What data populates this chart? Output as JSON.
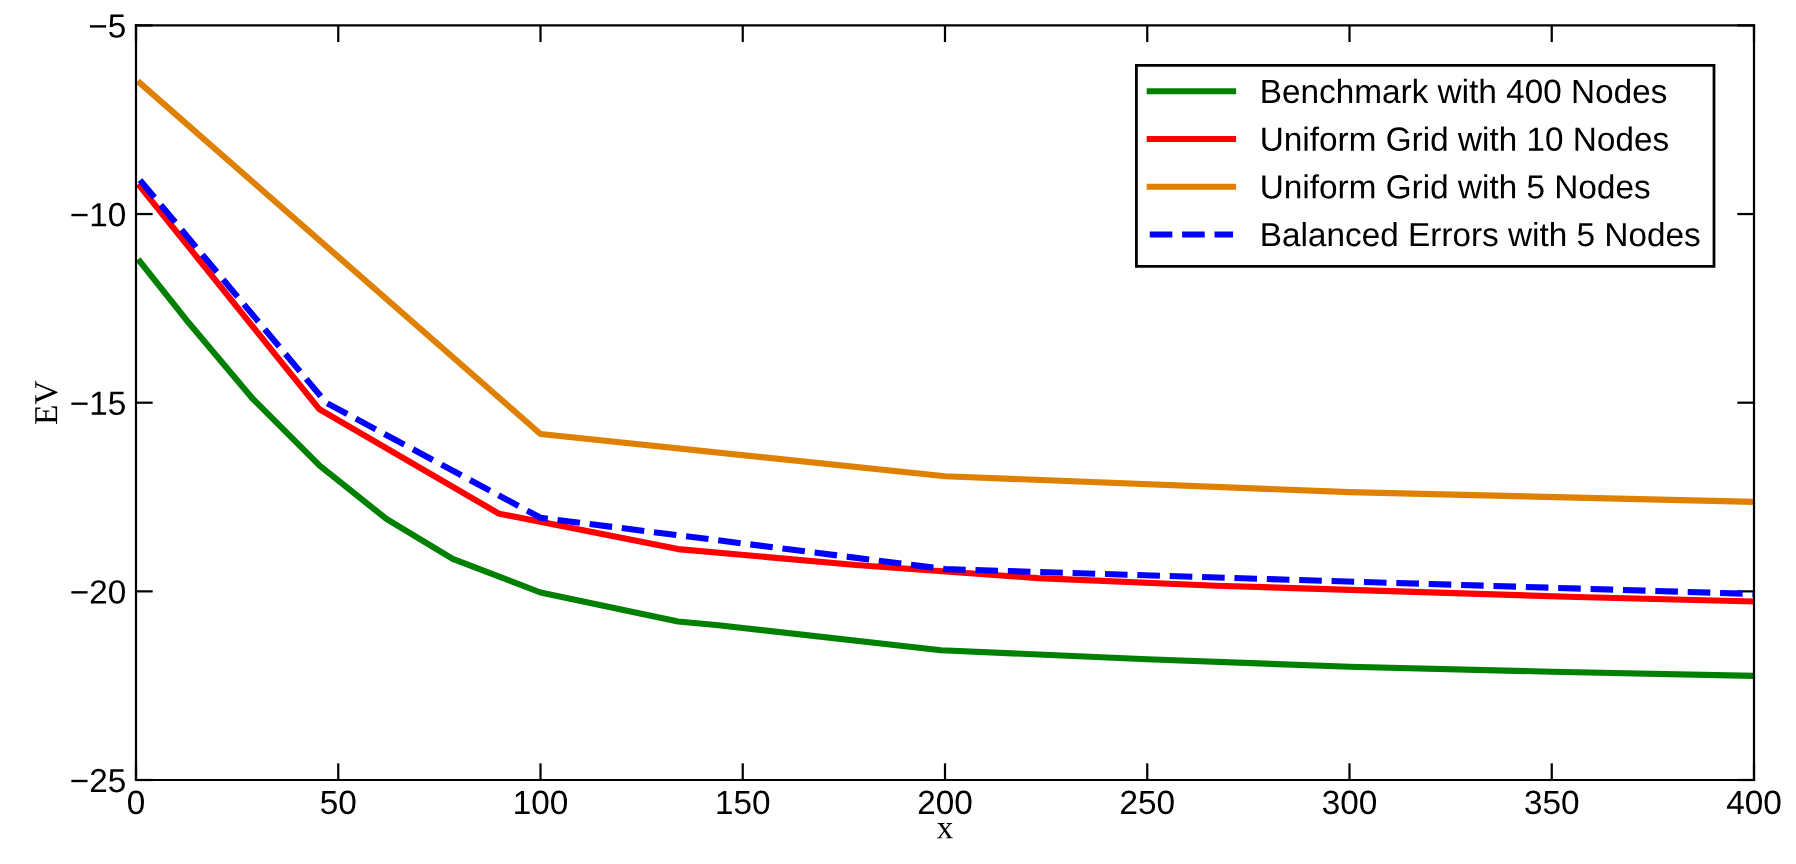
{
  "chart_data": {
    "type": "line",
    "xlabel": "x",
    "ylabel": "EV",
    "xlim": [
      0,
      400
    ],
    "xticks": [
      0,
      50,
      100,
      150,
      200,
      250,
      300,
      350,
      400
    ],
    "ylim": [
      -25,
      -5
    ],
    "yticks": [
      -25,
      -20,
      -15,
      -10,
      -5
    ],
    "grid": false,
    "legend": "top right",
    "series": [
      {
        "name": "Benchmark with 400 Nodes",
        "color": "#008000",
        "line_style": "solid",
        "x": [
          1,
          12.4,
          28.9,
          45.4,
          61.9,
          78.3,
          100,
          134,
          144,
          199,
          250,
          300,
          350,
          400
        ],
        "values": [
          -11.26,
          -12.8,
          -14.9,
          -16.67,
          -18.08,
          -19.14,
          -20.03,
          -20.8,
          -20.9,
          -21.56,
          -21.8,
          -22.0,
          -22.13,
          -22.24
        ]
      },
      {
        "name": "Uniform Grid with 10 Nodes",
        "color": "#ff0000",
        "line_style": "solid",
        "x": [
          1,
          45.3,
          89.7,
          134,
          178,
          223,
          267,
          312,
          356,
          400
        ],
        "values": [
          -9.27,
          -15.17,
          -17.94,
          -18.88,
          -19.3,
          -19.65,
          -19.85,
          -20.0,
          -20.15,
          -20.27
        ]
      },
      {
        "name": "Uniform Grid with 5 Nodes",
        "color": "#e08000",
        "line_style": "solid",
        "x": [
          1,
          100,
          200,
          300,
          400
        ],
        "values": [
          -6.53,
          -15.83,
          -16.95,
          -17.37,
          -17.63
        ]
      },
      {
        "name": "Balanced Errors with 5 Nodes",
        "color": "#0000ff",
        "line_style": "dashed",
        "x": [
          1,
          47,
          100,
          200,
          400
        ],
        "values": [
          -9.1,
          -15.0,
          -18.05,
          -19.41,
          -20.07
        ]
      }
    ]
  }
}
